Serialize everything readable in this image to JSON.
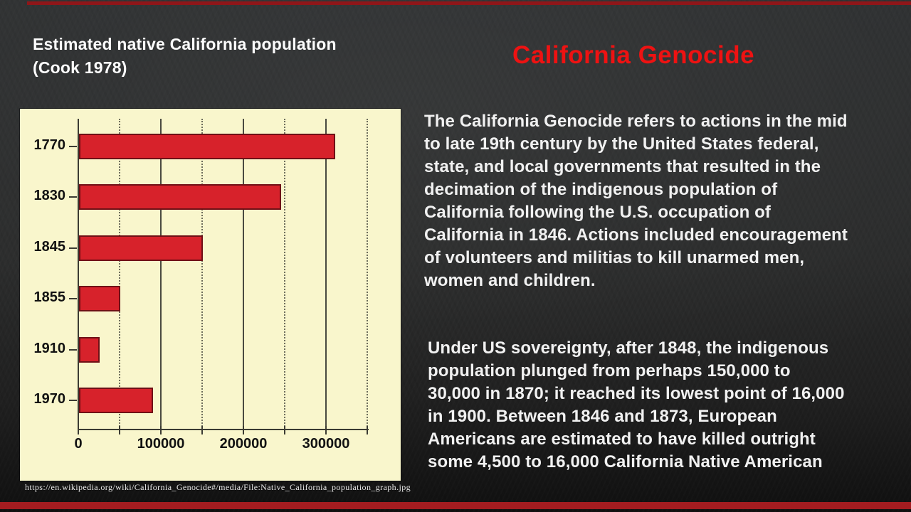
{
  "slide": {
    "chart_heading_lines": [
      "Estimated native California population",
      "(Cook 1978)"
    ],
    "title": "California Genocide",
    "paragraph1_lines": [
      "The California Genocide refers to actions in the mid",
      "to late 19th century by the United States federal,",
      "state, and local governments that resulted in the",
      "decimation of the indigenous population of",
      "California following the U.S. occupation of",
      "California in 1846. Actions included encouragement",
      "of volunteers and militias to kill unarmed men,",
      "women and children."
    ],
    "paragraph2_lines": [
      "Under US sovereignty, after 1848, the indigenous",
      "population plunged from perhaps 150,000 to",
      "30,000 in 1870; it reached its lowest point of 16,000",
      "in 1900. Between 1846 and 1873, European",
      "Americans are estimated to have killed outright",
      "some 4,500 to 16,000 California Native American"
    ],
    "source_url": "https://en.wikipedia.org/wiki/California_Genocide#/media/File:Native_California_population_graph.jpg"
  },
  "colors": {
    "background_dark": "#2a2b2b",
    "accent_red_top": "#8f1619",
    "accent_red_bottom": "#a31c20",
    "title_red": "#ee1212",
    "bar_red": "#d7222b",
    "bar_border": "#6f1016",
    "chart_background_cream": "#f9f6cc",
    "body_text_white": "#f1f1f1"
  },
  "chart_data": {
    "type": "bar",
    "orientation": "horizontal",
    "title": "Estimated native California population (Cook 1978)",
    "categories": [
      "1770",
      "1830",
      "1845",
      "1855",
      "1910",
      "1970"
    ],
    "values": [
      310000,
      245000,
      150000,
      50000,
      25000,
      90000
    ],
    "xlabel": "",
    "ylabel": "",
    "xlim": [
      0,
      350000
    ],
    "x_major_ticks": [
      0,
      100000,
      200000,
      300000
    ],
    "x_major_tick_labels": [
      "0",
      "100000",
      "200000",
      "300000"
    ],
    "x_minor_step": 50000,
    "grid": "vertical; solid lines at major ticks, dotted lines at 50000 minors",
    "legend": "none",
    "bar_color": "#d7222b"
  }
}
